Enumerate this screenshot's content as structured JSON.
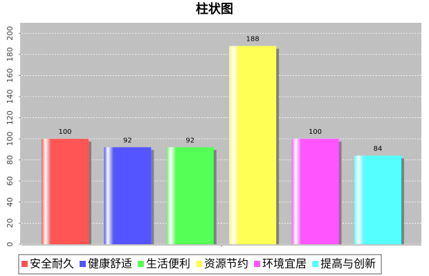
{
  "chart_data": {
    "type": "bar",
    "title": "柱状图",
    "categories": [
      null
    ],
    "series": [
      {
        "name": "安全耐久",
        "color": "#ff5555",
        "values": [
          100
        ]
      },
      {
        "name": "健康舒适",
        "color": "#5555ff",
        "values": [
          92
        ]
      },
      {
        "name": "生活便利",
        "color": "#55ff55",
        "values": [
          92
        ]
      },
      {
        "name": "资源节约",
        "color": "#ffff55",
        "values": [
          188
        ]
      },
      {
        "name": "环境宜居",
        "color": "#ff55ff",
        "values": [
          100
        ]
      },
      {
        "name": "提高与创新",
        "color": "#55ffff",
        "values": [
          84
        ]
      }
    ],
    "ylim": [
      0,
      210
    ],
    "yticks": [
      0,
      20,
      40,
      60,
      80,
      100,
      120,
      140,
      160,
      180,
      200
    ],
    "grid": true,
    "legend": "bottom"
  }
}
